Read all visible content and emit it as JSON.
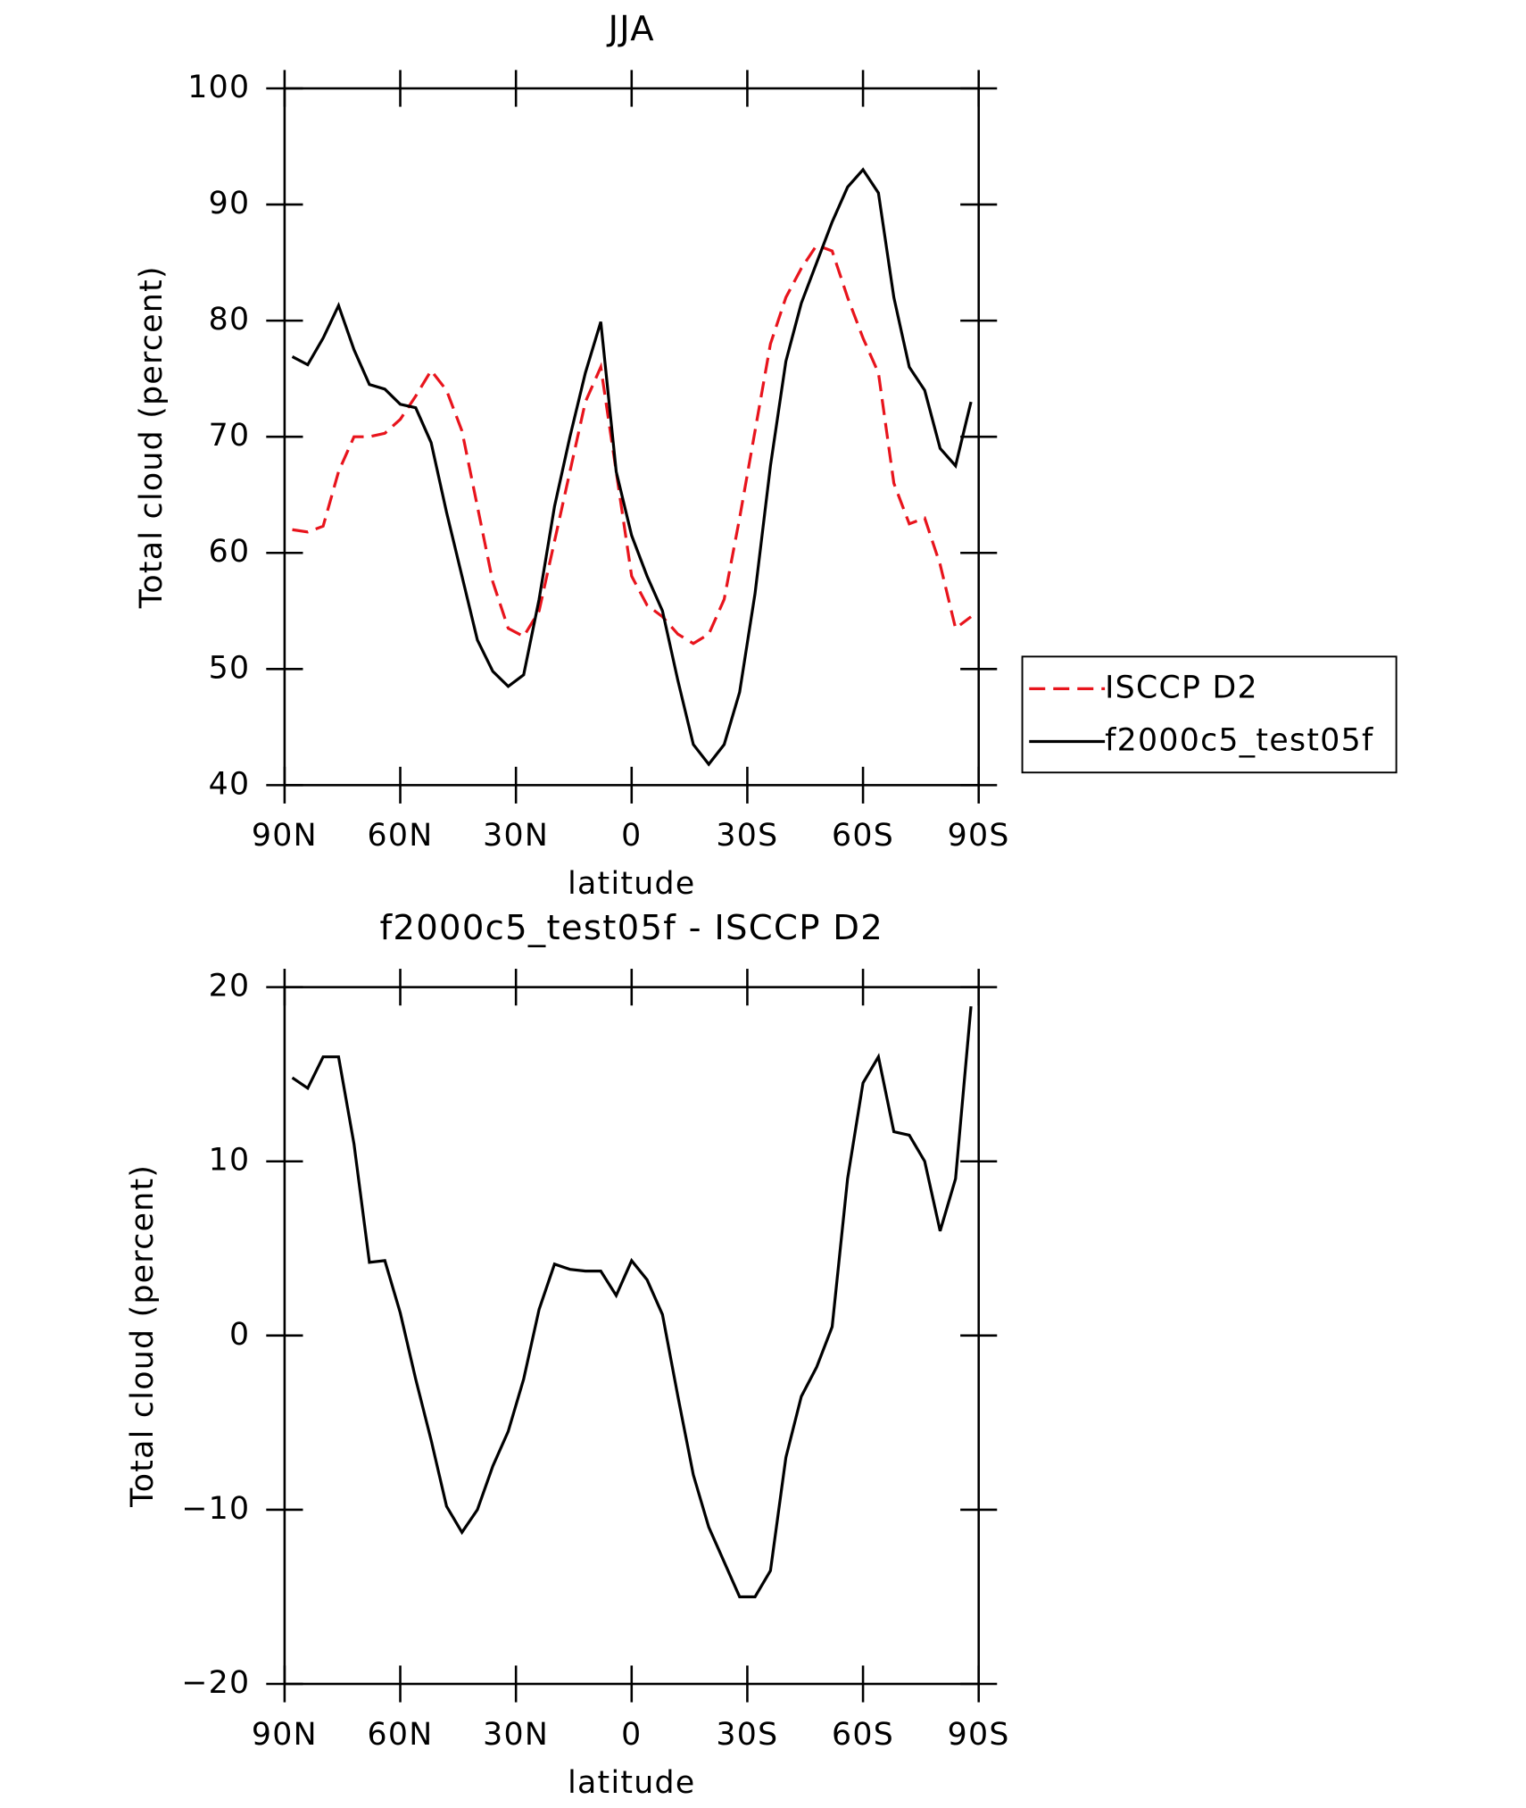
{
  "chart_data": [
    {
      "type": "line",
      "title": "JJA",
      "xlabel": "latitude",
      "ylabel": "Total cloud (percent)",
      "x": [
        88,
        84,
        80,
        76,
        72,
        68,
        64,
        60,
        56,
        52,
        48,
        44,
        40,
        36,
        32,
        28,
        24,
        20,
        16,
        12,
        8,
        4,
        0,
        -4,
        -8,
        -12,
        -16,
        -20,
        -24,
        -28,
        -32,
        -36,
        -40,
        -44,
        -48,
        -52,
        -56,
        -60,
        -64,
        -68,
        -72,
        -76,
        -80,
        -84,
        -88
      ],
      "xlim": [
        90,
        -90
      ],
      "xticks": [
        {
          "value": 90,
          "label": "90N"
        },
        {
          "value": 60,
          "label": "60N"
        },
        {
          "value": 30,
          "label": "30N"
        },
        0,
        {
          "value": -30,
          "label": "30S"
        },
        {
          "value": -60,
          "label": "60S"
        },
        {
          "value": -90,
          "label": "90S"
        }
      ],
      "ylim": [
        40,
        100
      ],
      "yticks": [
        40,
        50,
        60,
        70,
        80,
        90,
        100
      ],
      "legend": "right",
      "series": [
        {
          "name": "ISCCP D2",
          "color": "#e8141c",
          "dash": true,
          "values": [
            62,
            61.8,
            62.3,
            67,
            70,
            70,
            70.3,
            71.5,
            73.5,
            75.7,
            74,
            70.5,
            64,
            57.5,
            53.5,
            52.8,
            55,
            61,
            67,
            73,
            76,
            67,
            58,
            55.5,
            54.5,
            53,
            52.2,
            53,
            56,
            63,
            70.5,
            78,
            82,
            84.5,
            86.5,
            86,
            82,
            78.5,
            75.5,
            66,
            62.5,
            63,
            59,
            53.5,
            54.5
          ]
        },
        {
          "name": "f2000c5_test05f",
          "color": "#000000",
          "dash": false,
          "values": [
            76.9,
            76.2,
            78.5,
            81.3,
            77.5,
            74.5,
            74.1,
            72.8,
            72.5,
            69.5,
            63.5,
            58,
            52.5,
            49.8,
            48.5,
            49.5,
            56,
            64,
            70,
            75.5,
            79.9,
            67,
            61.5,
            58,
            55,
            49,
            43.5,
            41.8,
            43.5,
            48,
            56.5,
            67.5,
            76.5,
            81.5,
            85,
            88.5,
            91.5,
            93,
            91,
            82,
            76,
            74,
            69,
            67.5,
            73
          ]
        }
      ]
    },
    {
      "type": "line",
      "title": "f2000c5_test05f - ISCCP D2",
      "xlabel": "latitude",
      "ylabel": "Total cloud (percent)",
      "x": [
        88,
        84,
        80,
        76,
        72,
        68,
        64,
        60,
        56,
        52,
        48,
        44,
        40,
        36,
        32,
        28,
        24,
        20,
        16,
        12,
        8,
        4,
        0,
        -4,
        -8,
        -12,
        -16,
        -20,
        -24,
        -28,
        -32,
        -36,
        -40,
        -44,
        -48,
        -52,
        -56,
        -60,
        -64,
        -68,
        -72,
        -76,
        -80,
        -84,
        -88
      ],
      "xlim": [
        90,
        -90
      ],
      "xticks": [
        {
          "value": 90,
          "label": "90N"
        },
        {
          "value": 60,
          "label": "60N"
        },
        {
          "value": 30,
          "label": "30N"
        },
        0,
        {
          "value": -30,
          "label": "30S"
        },
        {
          "value": -60,
          "label": "60S"
        },
        {
          "value": -90,
          "label": "90S"
        }
      ],
      "ylim": [
        -20,
        20
      ],
      "yticks": [
        {
          "value": -20,
          "label": "−20"
        },
        {
          "value": -10,
          "label": "−10"
        },
        0,
        10,
        20
      ],
      "color": "#000000",
      "values": [
        14.8,
        14.2,
        16,
        16,
        11,
        4.2,
        4.3,
        1.3,
        -2.5,
        -6,
        -9.8,
        -11.3,
        -10,
        -7.5,
        -5.5,
        -2.5,
        1.5,
        4.1,
        3.8,
        3.7,
        3.7,
        2.3,
        4.3,
        3.2,
        1.2,
        -3.5,
        -8,
        -11,
        -13,
        -15,
        -15,
        -13.5,
        -7,
        -3.5,
        -1.8,
        0.5,
        9,
        14.5,
        16,
        11.7,
        11.5,
        10,
        6,
        9,
        18.9
      ]
    }
  ]
}
